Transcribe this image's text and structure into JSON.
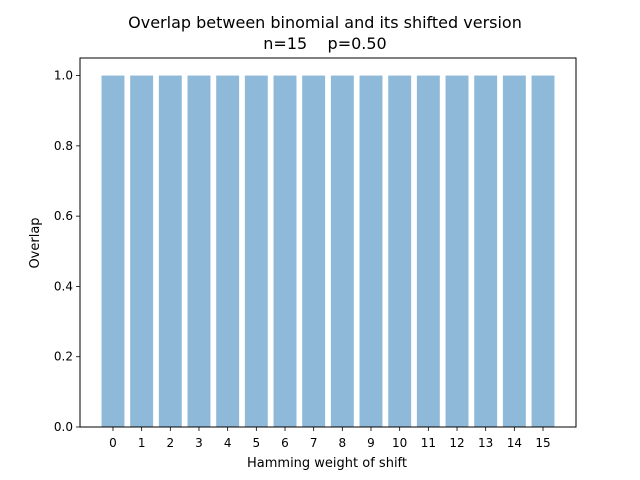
{
  "chart_data": {
    "type": "bar",
    "title": "Overlap between binomial and its shifted version",
    "subtitle": "n=15    p=0.50",
    "xlabel": "Hamming weight of shift",
    "ylabel": "Overlap",
    "categories": [
      "0",
      "1",
      "2",
      "3",
      "4",
      "5",
      "6",
      "7",
      "8",
      "9",
      "10",
      "11",
      "12",
      "13",
      "14",
      "15"
    ],
    "values": [
      1.0,
      1.0,
      1.0,
      1.0,
      1.0,
      1.0,
      1.0,
      1.0,
      1.0,
      1.0,
      1.0,
      1.0,
      1.0,
      1.0,
      1.0,
      1.0
    ],
    "ylim": [
      0,
      1.05
    ],
    "yticks": [
      0.0,
      0.2,
      0.4,
      0.6,
      0.8,
      1.0
    ],
    "ytick_labels": [
      "0.0",
      "0.2",
      "0.4",
      "0.6",
      "0.8",
      "1.0"
    ],
    "grid": false,
    "legend": "none",
    "bar_color": "#8fb9d9"
  }
}
